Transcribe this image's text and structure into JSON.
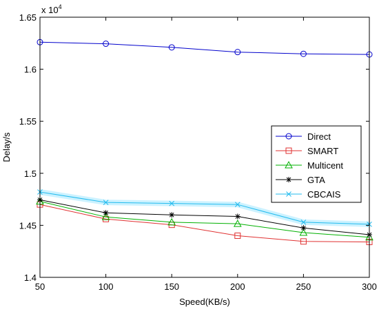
{
  "chart_data": {
    "type": "line",
    "xlabel": "Speed(KB/s)",
    "ylabel": "Delay/s",
    "exponent_base": "x 10",
    "exponent_power": "4",
    "x": [
      50,
      100,
      150,
      200,
      250,
      300
    ],
    "x_tick_labels": [
      "50",
      "100",
      "150",
      "200",
      "250",
      "300"
    ],
    "y_ticks": [
      14000,
      14500,
      15000,
      15500,
      16000,
      16500
    ],
    "y_tick_labels": [
      "1.4",
      "1.45",
      "1.5",
      "1.55",
      "1.6",
      "1.65"
    ],
    "xlim": [
      50,
      300
    ],
    "ylim": [
      14000,
      16500
    ],
    "grid": false,
    "legend_position": "right",
    "series": [
      {
        "name": "Direct",
        "color": "#0000cc",
        "marker": "circle",
        "values": [
          16260,
          16245,
          16210,
          16165,
          16148,
          16142
        ]
      },
      {
        "name": "SMART",
        "color": "#e03030",
        "marker": "square",
        "values": [
          14700,
          14560,
          14505,
          14400,
          14345,
          14340
        ]
      },
      {
        "name": "Multicent",
        "color": "#00b000",
        "marker": "triangle",
        "values": [
          14730,
          14580,
          14530,
          14515,
          14430,
          14385
        ]
      },
      {
        "name": "GTA",
        "color": "#000000",
        "marker": "asterisk",
        "values": [
          14745,
          14620,
          14600,
          14585,
          14475,
          14410
        ]
      },
      {
        "name": "CBCAIS",
        "color": "#22bbee",
        "marker": "x",
        "highlight": "#bfefff",
        "values": [
          14820,
          14720,
          14710,
          14700,
          14530,
          14510
        ]
      }
    ]
  }
}
